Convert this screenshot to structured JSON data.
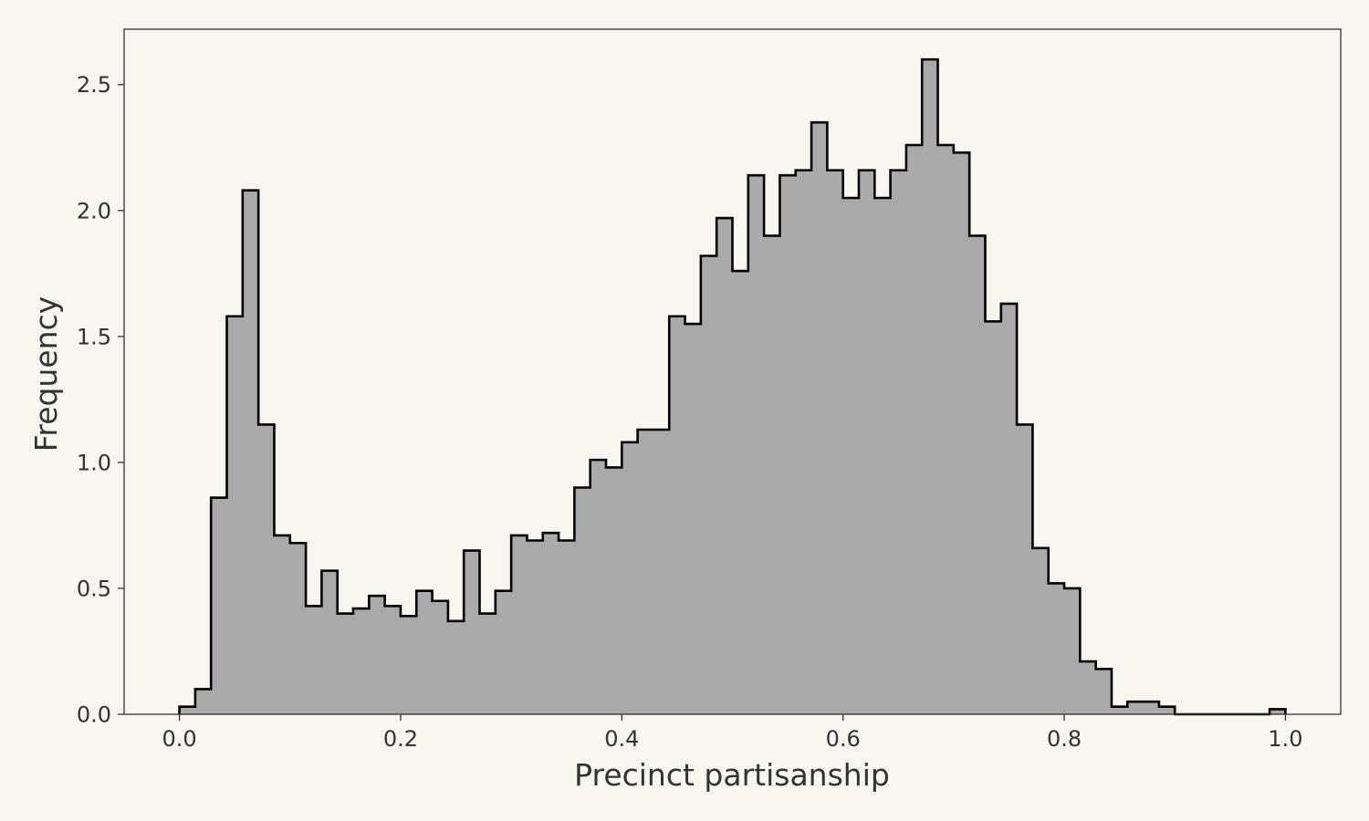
{
  "chart_data": {
    "type": "histogram",
    "title": "",
    "xlabel": "Precinct partisanship",
    "ylabel": "Frequency",
    "xlim": [
      -0.05,
      1.05
    ],
    "ylim": [
      0,
      2.72
    ],
    "xticks": [
      {
        "value": 0.0,
        "label": "0.0"
      },
      {
        "value": 0.2,
        "label": "0.2"
      },
      {
        "value": 0.4,
        "label": "0.4"
      },
      {
        "value": 0.6,
        "label": "0.6"
      },
      {
        "value": 0.8,
        "label": "0.8"
      },
      {
        "value": 1.0,
        "label": "1.0"
      }
    ],
    "yticks": [
      {
        "value": 0.0,
        "label": "0.0"
      },
      {
        "value": 0.5,
        "label": "0.5"
      },
      {
        "value": 1.0,
        "label": "1.0"
      },
      {
        "value": 1.5,
        "label": "1.5"
      },
      {
        "value": 2.0,
        "label": "2.0"
      },
      {
        "value": 2.5,
        "label": "2.5"
      }
    ],
    "grid": false,
    "bin_start": 0.0,
    "bin_width": 0.01428571,
    "values": [
      0.03,
      0.1,
      0.86,
      1.58,
      2.08,
      1.15,
      0.71,
      0.68,
      0.43,
      0.57,
      0.4,
      0.42,
      0.47,
      0.43,
      0.39,
      0.49,
      0.45,
      0.37,
      0.65,
      0.4,
      0.49,
      0.71,
      0.69,
      0.72,
      0.69,
      0.9,
      1.01,
      0.98,
      1.08,
      1.13,
      1.13,
      1.58,
      1.55,
      1.82,
      1.97,
      1.76,
      2.14,
      1.9,
      2.14,
      2.16,
      2.35,
      2.16,
      2.05,
      2.16,
      2.05,
      2.16,
      2.26,
      2.6,
      2.26,
      2.23,
      1.9,
      1.56,
      1.63,
      1.15,
      0.66,
      0.52,
      0.5,
      0.21,
      0.18,
      0.03,
      0.05,
      0.05,
      0.03,
      0.0,
      0.0,
      0.0,
      0.0,
      0.0,
      0.0,
      0.02
    ],
    "colors": {
      "fill": "#aaaaaa",
      "edge": "#000000",
      "axes": "#333333",
      "background": "#f9f5ef"
    }
  }
}
